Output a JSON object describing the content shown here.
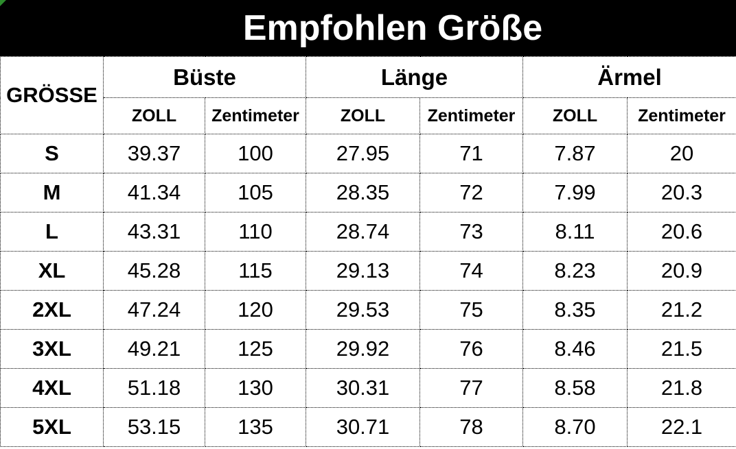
{
  "title": "Empfohlen Größe",
  "colors": {
    "banner_bg": "#000000",
    "banner_text": "#ffffff",
    "body_text": "#000000",
    "grid_border": "#000000",
    "corner_flag_green": "#2d8c2d"
  },
  "chart_data": {
    "type": "table",
    "title": "Empfohlen Größe",
    "header": {
      "size_label": "GRÖSSE",
      "groups": [
        "Büste",
        "Länge",
        "Ärmel"
      ],
      "units": [
        "ZOLL",
        "Zentimeter",
        "ZOLL",
        "Zentimeter",
        "ZOLL",
        "Zentimeter"
      ]
    },
    "columns": [
      "GRÖSSE",
      "Büste ZOLL",
      "Büste Zentimeter",
      "Länge ZOLL",
      "Länge Zentimeter",
      "Ärmel ZOLL",
      "Ärmel Zentimeter"
    ],
    "rows": [
      [
        "S",
        "39.37",
        "100",
        "27.95",
        "71",
        "7.87",
        "20"
      ],
      [
        "M",
        "41.34",
        "105",
        "28.35",
        "72",
        "7.99",
        "20.3"
      ],
      [
        "L",
        "43.31",
        "110",
        "28.74",
        "73",
        "8.11",
        "20.6"
      ],
      [
        "XL",
        "45.28",
        "115",
        "29.13",
        "74",
        "8.23",
        "20.9"
      ],
      [
        "2XL",
        "47.24",
        "120",
        "29.53",
        "75",
        "8.35",
        "21.2"
      ],
      [
        "3XL",
        "49.21",
        "125",
        "29.92",
        "76",
        "8.46",
        "21.5"
      ],
      [
        "4XL",
        "51.18",
        "130",
        "30.31",
        "77",
        "8.58",
        "21.8"
      ],
      [
        "5XL",
        "53.15",
        "135",
        "30.71",
        "78",
        "8.70",
        "22.1"
      ]
    ]
  }
}
